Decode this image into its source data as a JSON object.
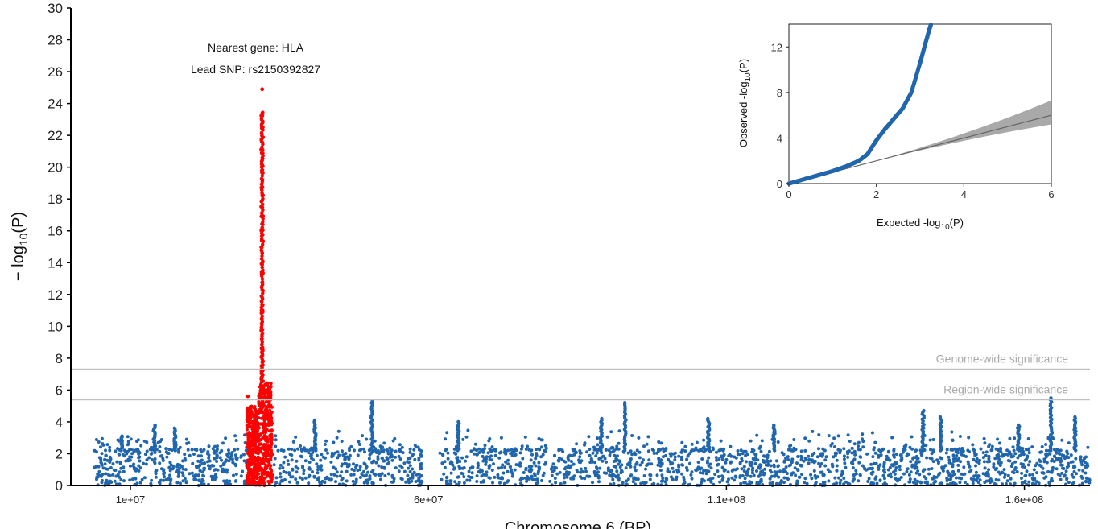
{
  "chart_data": [
    {
      "type": "scatter",
      "title": "",
      "xlabel": "Chromosome 6 (BP)",
      "ylabel_main": "− log",
      "ylabel_sub": "10",
      "ylabel_end": "(P)",
      "xlim": [
        0,
        171000000
      ],
      "ylim": [
        0,
        30
      ],
      "x_ticks": [
        10000000,
        60000000,
        110000000,
        160000000
      ],
      "x_tick_labels": [
        "1e+07",
        "6e+07",
        "1.1e+08",
        "1.6e+08"
      ],
      "y_ticks": [
        0,
        2,
        4,
        6,
        8,
        10,
        12,
        14,
        16,
        18,
        20,
        22,
        24,
        26,
        28,
        30
      ],
      "y_tick_labels": [
        "0",
        "2",
        "4",
        "6",
        "8",
        "10",
        "12",
        "14",
        "16",
        "18",
        "20",
        "22",
        "24",
        "26",
        "28",
        "30"
      ],
      "grid": false,
      "thresholds": [
        {
          "label": "Genome-wide significance",
          "value": 7.3
        },
        {
          "label": "Region-wide significance",
          "value": 5.4
        }
      ],
      "annotation": {
        "gene_label": "Nearest gene: HLA",
        "snp_label": "Lead SNP: rs2150392827",
        "x": 31000000,
        "y": 24.9
      },
      "series": [
        {
          "color": "#2166ac",
          "range": [
            3800000,
            171000000
          ],
          "gap": [
            59000000,
            61800000
          ],
          "baseline_max": 2.3,
          "peaks": [
            [
              8500000,
              3.1
            ],
            [
              14000000,
              3.8
            ],
            [
              17500000,
              3.6
            ],
            [
              31000000,
              4.4
            ],
            [
              41000000,
              4.1
            ],
            [
              50500000,
              5.3
            ],
            [
              65000000,
              4.0
            ],
            [
              89000000,
              4.2
            ],
            [
              93000000,
              5.2
            ],
            [
              107000000,
              4.2
            ],
            [
              118000000,
              3.8
            ],
            [
              143000000,
              4.7
            ],
            [
              146000000,
              4.3
            ],
            [
              159000000,
              3.8
            ],
            [
              164500000,
              5.5
            ],
            [
              168500000,
              4.3
            ]
          ]
        },
        {
          "color": "#ff0000",
          "range": [
            29500000,
            33800000
          ],
          "lead": [
            32100000,
            24.9
          ],
          "top_values": [
            23.5,
            23.0,
            22.1,
            21.4,
            20.9,
            20.2,
            19.3,
            18.8,
            18.1,
            17.4,
            16.6,
            15.9,
            15.1,
            14.3,
            13.5,
            12.8,
            11.9,
            11.2,
            10.5,
            9.8,
            9.1,
            8.5,
            7.9,
            7.4,
            6.9,
            6.4,
            5.9,
            5.6
          ]
        }
      ]
    },
    {
      "type": "line",
      "title": "",
      "xlabel": "Expected -log",
      "xlabel_sub": "10",
      "xlabel_end": "(P)",
      "ylabel": "Observed -log",
      "ylabel_sub": "10",
      "ylabel_end": "(P)",
      "xlim": [
        0,
        6
      ],
      "ylim": [
        0,
        14
      ],
      "x_ticks": [
        0,
        2,
        4,
        6
      ],
      "y_ticks": [
        0,
        4,
        8,
        12
      ],
      "series": [
        {
          "color": "#2166ac",
          "x": [
            0,
            0.5,
            1.0,
            1.3,
            1.6,
            1.8,
            2.0,
            2.2,
            2.4,
            2.6,
            2.8,
            3.0,
            3.1,
            3.2,
            3.25
          ],
          "y": [
            0,
            0.55,
            1.1,
            1.5,
            2.0,
            2.6,
            3.8,
            4.8,
            5.7,
            6.6,
            8.0,
            10.6,
            12.0,
            13.4,
            14.0
          ]
        },
        {
          "color": "#666666",
          "x": [
            0,
            6
          ],
          "y": [
            0,
            6
          ],
          "ci_upper_end": 7.3,
          "ci_lower_end": 5.2
        }
      ]
    }
  ]
}
